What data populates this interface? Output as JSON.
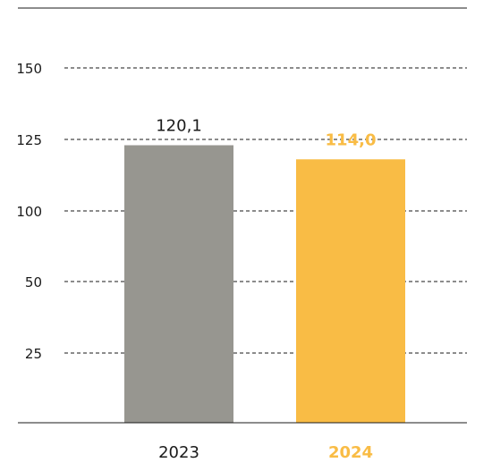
{
  "chart_data": {
    "type": "bar",
    "categories": [
      "2023",
      "2024"
    ],
    "values": [
      120.1,
      114.0
    ],
    "value_labels": [
      "120,1",
      "114,0"
    ],
    "y_ticks": [
      "150",
      "125",
      "100",
      "50",
      "25"
    ],
    "colors": {
      "bar_2023": "#979690",
      "bar_2024": "#f9bc45",
      "label_2023": "#1a1a1a",
      "label_2024": "#f9bc45",
      "grid": "#1a1a1a"
    },
    "grid": true,
    "title": "",
    "xlabel": "",
    "ylabel": ""
  }
}
